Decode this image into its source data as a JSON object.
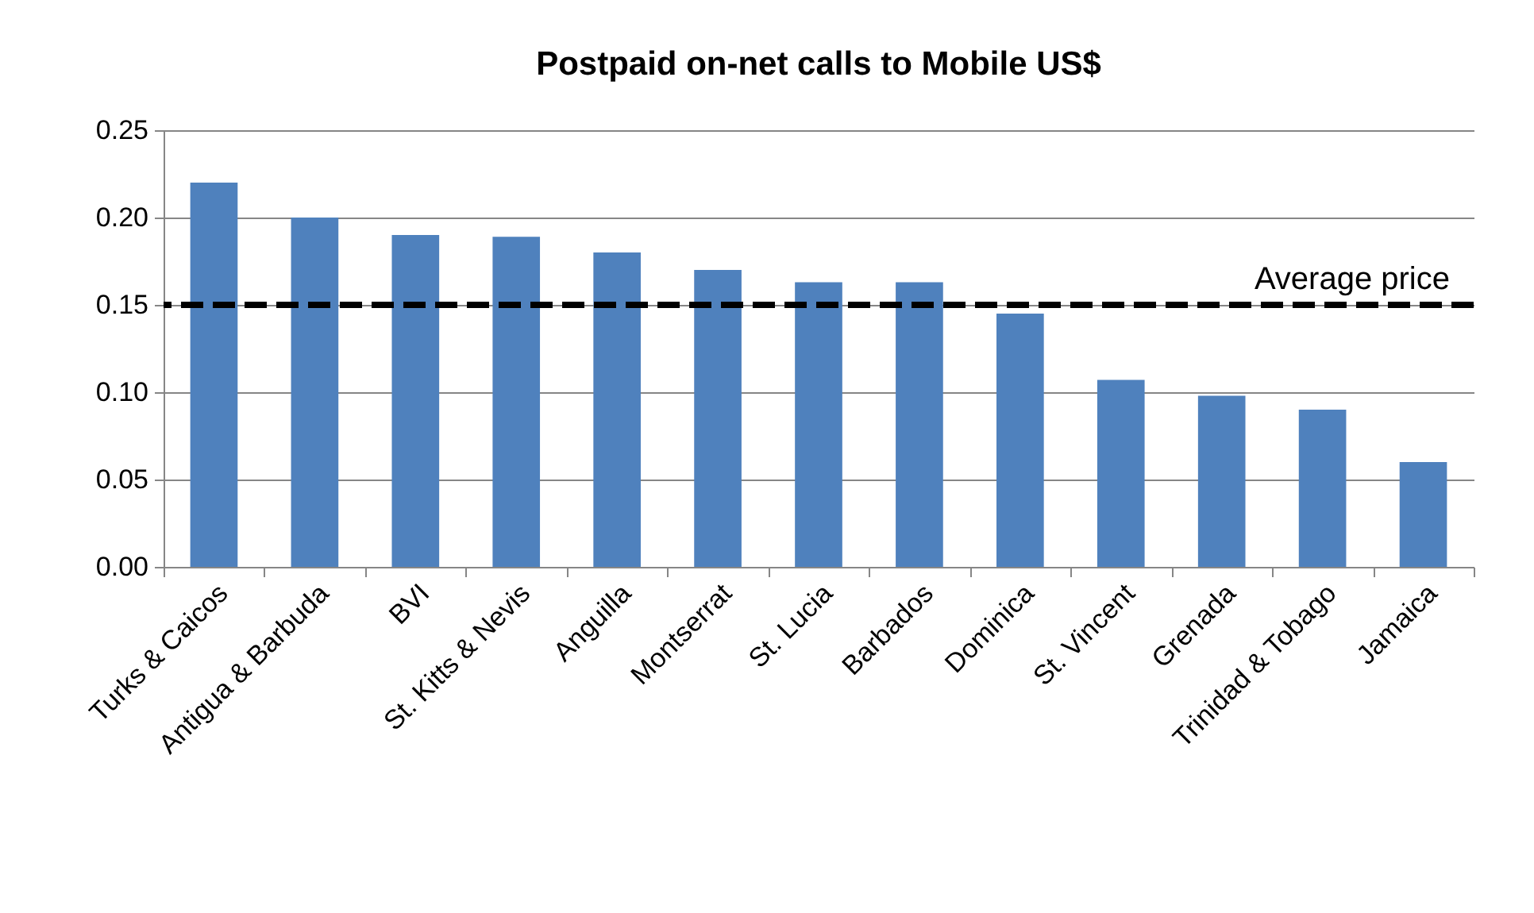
{
  "chart_data": {
    "type": "bar",
    "title": "Postpaid on-net calls to Mobile US$",
    "categories": [
      "Turks & Caicos",
      "Antigua & Barbuda",
      "BVI",
      "St. Kitts & Nevis",
      "Anguilla",
      "Montserrat",
      "St. Lucia",
      "Barbados",
      "Dominica",
      "St. Vincent",
      "Grenada",
      "Trinidad & Tobago",
      "Jamaica"
    ],
    "values": [
      0.22,
      0.2,
      0.19,
      0.189,
      0.18,
      0.17,
      0.163,
      0.163,
      0.145,
      0.107,
      0.098,
      0.09,
      0.06
    ],
    "color": "#4f81bd",
    "ylim": [
      0,
      0.25
    ],
    "yticks": [
      {
        "value": 0,
        "label": "0.00"
      },
      {
        "value": 0.05,
        "label": "0.05"
      },
      {
        "value": 0.1,
        "label": "0.10"
      },
      {
        "value": 0.15,
        "label": "0.15"
      },
      {
        "value": 0.2,
        "label": "0.20"
      },
      {
        "value": 0.25,
        "label": "0.25"
      }
    ],
    "grid": "y",
    "ref_lines": [
      {
        "axis": "y",
        "value": 0.15,
        "label": "Average price",
        "color": "#000000",
        "line_style": "dashed"
      }
    ]
  }
}
